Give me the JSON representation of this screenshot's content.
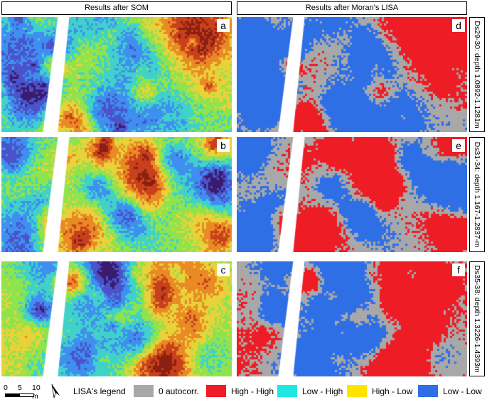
{
  "headers": {
    "som": "Results after SOM",
    "lisa": "Results after Moran's LISA"
  },
  "rows": [
    {
      "som_letter": "a",
      "lisa_letter": "d",
      "label": "Ds29-30: depth 1.0892-1.1281m"
    },
    {
      "som_letter": "b",
      "lisa_letter": "e",
      "label": "Ds31-34: depth 1.167-1.2837-m"
    },
    {
      "som_letter": "c",
      "lisa_letter": "f",
      "label": "Ds35-38: depth 1.3226-1.4393m"
    }
  ],
  "scale_bar": {
    "ticks": [
      "0",
      "5",
      "10 m"
    ]
  },
  "north_arrow_icon": "north-arrow-icon",
  "legend": {
    "title": "LISA's legend",
    "items": [
      {
        "label": "0 autocorr.",
        "color": "#a8a8a8"
      },
      {
        "label": "High - High",
        "color": "#ee1c25"
      },
      {
        "label": "Low - High",
        "color": "#22e6e0"
      },
      {
        "label": "High - Low",
        "color": "#ffe400"
      },
      {
        "label": "Low - Low",
        "color": "#2f6fe6"
      }
    ]
  },
  "colors": {
    "som_palette": [
      "#3b1b6e",
      "#4a53c9",
      "#3f8ff0",
      "#40d2c8",
      "#8fe34d",
      "#e8d23a",
      "#e98a25",
      "#c8401c",
      "#8a1f12"
    ],
    "lisa_low_low": "#2f6fe6",
    "lisa_high_high": "#ee1c25",
    "lisa_zero": "#a8a8a8"
  }
}
